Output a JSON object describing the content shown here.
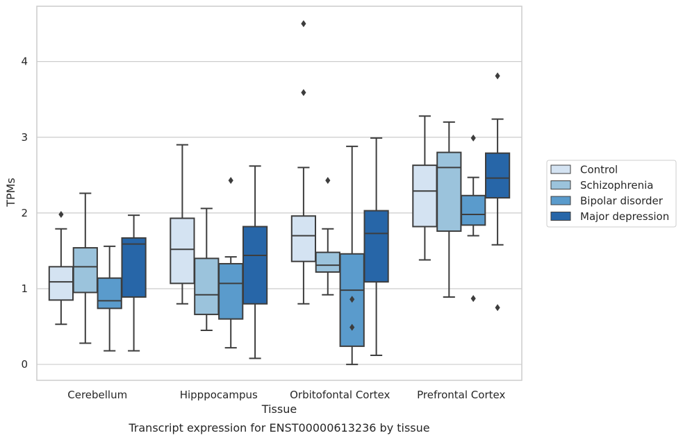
{
  "chart_data": {
    "type": "box",
    "title": "",
    "caption": "Transcript expression for ENST00000613236 by tissue",
    "xlabel": "Tissue",
    "ylabel": "TPMs",
    "ylim": [
      -0.21,
      4.73
    ],
    "yticks": [
      0,
      1,
      2,
      3,
      4
    ],
    "grid": "horizontal",
    "legend_position": "right",
    "categories": [
      "Cerebellum",
      "Hipppocampus",
      "Orbitofontal Cortex",
      "Prefrontal Cortex"
    ],
    "series": [
      {
        "name": "Control",
        "color": "#d4e3f2",
        "boxes": [
          {
            "whisker_low": 0.53,
            "q1": 0.85,
            "median": 1.09,
            "q3": 1.29,
            "whisker_high": 1.79,
            "outliers": [
              1.98
            ]
          },
          {
            "whisker_low": 0.8,
            "q1": 1.07,
            "median": 1.52,
            "q3": 1.93,
            "whisker_high": 2.9,
            "outliers": []
          },
          {
            "whisker_low": 0.8,
            "q1": 1.36,
            "median": 1.7,
            "q3": 1.96,
            "whisker_high": 2.6,
            "outliers": [
              3.59,
              4.5
            ]
          },
          {
            "whisker_low": 1.38,
            "q1": 1.82,
            "median": 2.29,
            "q3": 2.63,
            "whisker_high": 3.28,
            "outliers": []
          }
        ]
      },
      {
        "name": "Schizophrenia",
        "color": "#9bc3dc",
        "boxes": [
          {
            "whisker_low": 0.28,
            "q1": 0.95,
            "median": 1.29,
            "q3": 1.54,
            "whisker_high": 2.26,
            "outliers": []
          },
          {
            "whisker_low": 0.45,
            "q1": 0.66,
            "median": 0.92,
            "q3": 1.4,
            "whisker_high": 2.06,
            "outliers": []
          },
          {
            "whisker_low": 0.92,
            "q1": 1.22,
            "median": 1.31,
            "q3": 1.48,
            "whisker_high": 1.79,
            "outliers": [
              2.43
            ]
          },
          {
            "whisker_low": 0.89,
            "q1": 1.76,
            "median": 2.6,
            "q3": 2.8,
            "whisker_high": 3.2,
            "outliers": []
          }
        ]
      },
      {
        "name": "Bipolar disorder",
        "color": "#5a9bcc",
        "boxes": [
          {
            "whisker_low": 0.18,
            "q1": 0.74,
            "median": 0.84,
            "q3": 1.14,
            "whisker_high": 1.56,
            "outliers": []
          },
          {
            "whisker_low": 0.22,
            "q1": 0.6,
            "median": 1.07,
            "q3": 1.33,
            "whisker_high": 1.42,
            "outliers": [
              2.43
            ]
          },
          {
            "whisker_low": 0.0,
            "q1": 0.24,
            "median": 0.98,
            "q3": 1.46,
            "whisker_high": 2.88,
            "outliers": [
              0.49,
              0.86
            ]
          },
          {
            "whisker_low": 1.7,
            "q1": 1.84,
            "median": 1.98,
            "q3": 2.23,
            "whisker_high": 2.47,
            "outliers": [
              0.87,
              2.99
            ]
          }
        ]
      },
      {
        "name": "Major depression",
        "color": "#2766a8",
        "boxes": [
          {
            "whisker_low": 0.18,
            "q1": 0.89,
            "median": 1.59,
            "q3": 1.67,
            "whisker_high": 1.97,
            "outliers": []
          },
          {
            "whisker_low": 0.08,
            "q1": 0.8,
            "median": 1.44,
            "q3": 1.82,
            "whisker_high": 2.62,
            "outliers": []
          },
          {
            "whisker_low": 0.12,
            "q1": 1.09,
            "median": 1.73,
            "q3": 2.03,
            "whisker_high": 2.99,
            "outliers": []
          },
          {
            "whisker_low": 1.58,
            "q1": 2.2,
            "median": 2.46,
            "q3": 2.79,
            "whisker_high": 3.24,
            "outliers": [
              0.75,
              3.81
            ]
          }
        ]
      }
    ]
  }
}
